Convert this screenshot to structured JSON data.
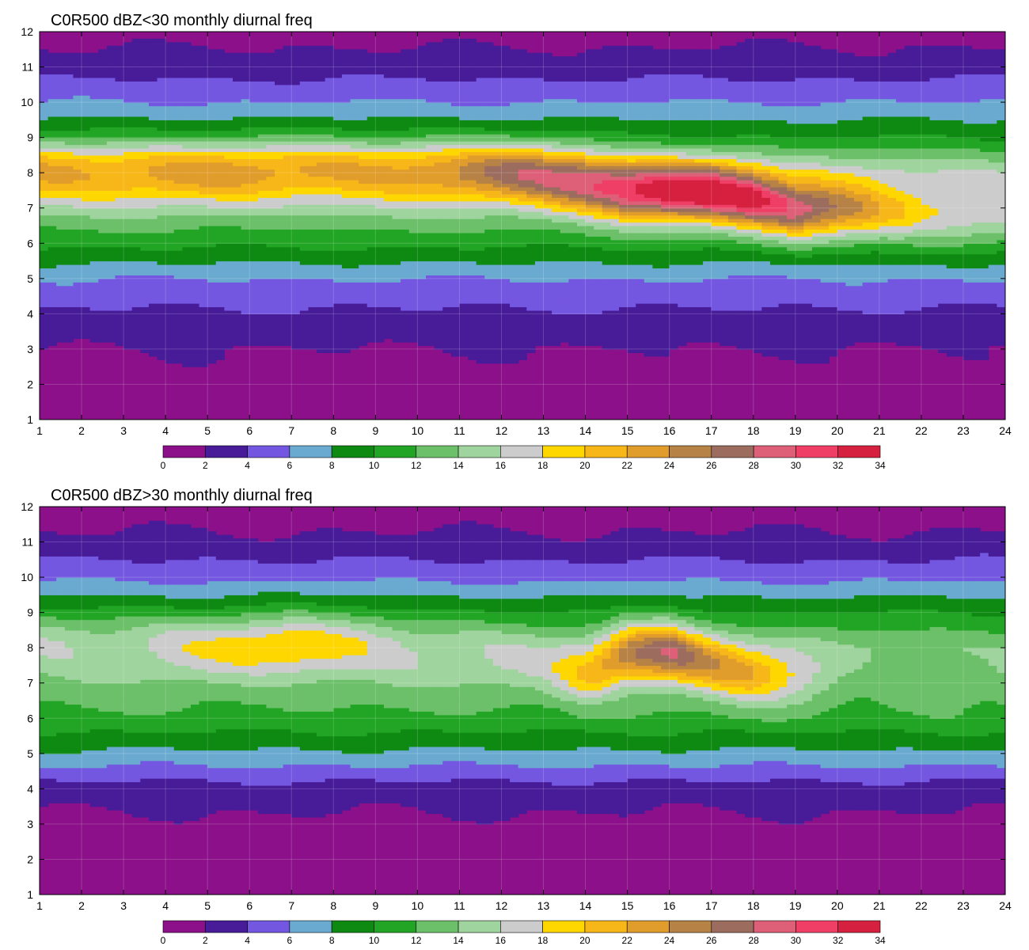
{
  "palette": [
    "#8b1089",
    "#481c98",
    "#7457e0",
    "#6aaad0",
    "#0e8a12",
    "#22a524",
    "#6cc069",
    "#a0d49e",
    "#cccccc",
    "#ffd700",
    "#f8b718",
    "#e09d2b",
    "#b78246",
    "#9c6d5f",
    "#dd5f78",
    "#ef3f66",
    "#d6203f"
  ],
  "contour_levels": [
    0,
    2,
    4,
    6,
    8,
    10,
    12,
    14,
    16,
    18,
    20,
    22,
    24,
    26,
    28,
    30,
    32,
    34
  ],
  "line_color": "#f5a623",
  "chart_data": [
    {
      "type": "heatmap",
      "title": "C0R500 dBZ<30 monthly diurnal freq",
      "x_ticks": [
        1,
        2,
        3,
        4,
        5,
        6,
        7,
        8,
        9,
        10,
        11,
        12,
        13,
        14,
        15,
        16,
        17,
        18,
        19,
        20,
        21,
        22,
        23,
        24
      ],
      "y_ticks": [
        1,
        2,
        3,
        4,
        5,
        6,
        7,
        8,
        9,
        10,
        11,
        12
      ],
      "xlim": [
        1,
        24
      ],
      "ylim": [
        1,
        12
      ],
      "colorbar": {
        "levels": [
          0,
          2,
          4,
          6,
          8,
          10,
          12,
          14,
          16,
          18,
          20,
          22,
          24,
          26,
          28,
          30,
          32,
          34
        ],
        "ticks": [
          0,
          2,
          4,
          6,
          8,
          10,
          12,
          14,
          16,
          18,
          20,
          22,
          24,
          26,
          28,
          30,
          32,
          34
        ]
      },
      "core": [
        {
          "x": 9,
          "y": 8,
          "v": 22.5
        },
        {
          "x": 10,
          "y": 8,
          "v": 23.5
        },
        {
          "x": 11,
          "y": 8,
          "v": 24.5
        },
        {
          "x": 12,
          "y": 8,
          "v": 26
        },
        {
          "x": 13,
          "y": 7.9,
          "v": 28
        },
        {
          "x": 14,
          "y": 7.7,
          "v": 30.5
        },
        {
          "x": 15,
          "y": 7.5,
          "v": 33
        },
        {
          "x": 16,
          "y": 7.5,
          "v": 35
        },
        {
          "x": 17,
          "y": 7.5,
          "v": 35.5
        },
        {
          "x": 18,
          "y": 7.3,
          "v": 33.5
        },
        {
          "x": 19,
          "y": 7,
          "v": 30
        },
        {
          "x": 20,
          "y": 7,
          "v": 26
        },
        {
          "x": 21,
          "y": 7,
          "v": 22
        },
        {
          "x": 22,
          "y": 7,
          "v": 19
        },
        {
          "x": 23,
          "y": 7,
          "v": 18
        },
        {
          "x": 24,
          "y": 7,
          "v": 17
        }
      ],
      "base_profile": [
        {
          "y": 1,
          "v": 0.8
        },
        {
          "y": 2,
          "v": 1.2
        },
        {
          "y": 3,
          "v": 2.0
        },
        {
          "y": 4,
          "v": 3.6
        },
        {
          "y": 5,
          "v": 6.0
        },
        {
          "y": 6,
          "v": 10.5
        },
        {
          "y": 7,
          "v": 14.0
        },
        {
          "y": 8,
          "v": 16.0
        },
        {
          "y": 9,
          "v": 10.0
        },
        {
          "y": 10,
          "v": 6.0
        },
        {
          "y": 11,
          "v": 3.0
        },
        {
          "y": 12,
          "v": 1.2
        }
      ]
    },
    {
      "type": "heatmap",
      "title": "C0R500 dBZ>30 monthly diurnal freq",
      "x_ticks": [
        1,
        2,
        3,
        4,
        5,
        6,
        7,
        8,
        9,
        10,
        11,
        12,
        13,
        14,
        15,
        16,
        17,
        18,
        19,
        20,
        21,
        22,
        23,
        24
      ],
      "y_ticks": [
        1,
        2,
        3,
        4,
        5,
        6,
        7,
        8,
        9,
        10,
        11,
        12
      ],
      "xlim": [
        1,
        24
      ],
      "ylim": [
        1,
        12
      ],
      "colorbar": {
        "levels": [
          0,
          2,
          4,
          6,
          8,
          10,
          12,
          14,
          16,
          18,
          20,
          22,
          24,
          26,
          28,
          30,
          32,
          34
        ],
        "ticks": [
          0,
          2,
          4,
          6,
          8,
          10,
          12,
          14,
          16,
          18,
          20,
          22,
          24,
          26,
          28,
          30,
          32,
          34
        ]
      },
      "core": [
        {
          "x": 3,
          "y": 8,
          "v": 16
        },
        {
          "x": 5,
          "y": 8,
          "v": 17.5
        },
        {
          "x": 7,
          "y": 8,
          "v": 20.5
        },
        {
          "x": 9,
          "y": 8,
          "v": 17.5
        },
        {
          "x": 11,
          "y": 7.8,
          "v": 15.5
        },
        {
          "x": 13,
          "y": 7.5,
          "v": 16
        },
        {
          "x": 14,
          "y": 7.3,
          "v": 21
        },
        {
          "x": 15,
          "y": 7.8,
          "v": 26
        },
        {
          "x": 16,
          "y": 7.9,
          "v": 28.5
        },
        {
          "x": 17,
          "y": 7.6,
          "v": 24
        },
        {
          "x": 18,
          "y": 7.3,
          "v": 22
        },
        {
          "x": 19,
          "y": 7.2,
          "v": 18
        },
        {
          "x": 20,
          "y": 7.2,
          "v": 14
        },
        {
          "x": 21,
          "y": 7.2,
          "v": 11
        },
        {
          "x": 22,
          "y": 7.2,
          "v": 9
        },
        {
          "x": 24,
          "y": 7.2,
          "v": 8
        }
      ],
      "base_profile": [
        {
          "y": 1,
          "v": 0.8
        },
        {
          "y": 2,
          "v": 1.0
        },
        {
          "y": 3,
          "v": 1.5
        },
        {
          "y": 4,
          "v": 3.0
        },
        {
          "y": 5,
          "v": 7.5
        },
        {
          "y": 6,
          "v": 11.5
        },
        {
          "y": 7,
          "v": 13.0
        },
        {
          "y": 8,
          "v": 14.0
        },
        {
          "y": 9,
          "v": 10.0
        },
        {
          "y": 10,
          "v": 5.5
        },
        {
          "y": 11,
          "v": 2.5
        },
        {
          "y": 12,
          "v": 0.8
        }
      ]
    }
  ]
}
